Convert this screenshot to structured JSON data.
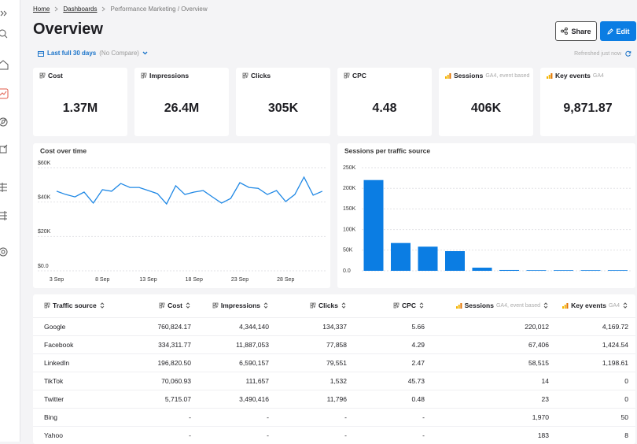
{
  "breadcrumb": [
    "Home",
    "Dashboards",
    "Performance Marketing / Overview"
  ],
  "title": "Overview",
  "actions": [
    "Share",
    "Edit"
  ],
  "date_range": {
    "label": "Last full 30 days",
    "compare": "(No Compare)"
  },
  "refreshed": "Refreshed just now",
  "kpis": [
    {
      "label": "Cost",
      "value": "1.37M"
    },
    {
      "label": "Impressions",
      "value": "26.4M"
    },
    {
      "label": "Clicks",
      "value": "305K"
    },
    {
      "label": "CPC",
      "value": "4.48"
    },
    {
      "label": "Sessions",
      "note": "GA4, event based",
      "value": "406K"
    },
    {
      "label": "Key events",
      "note": "GA4",
      "value": "9,871.87"
    }
  ],
  "line_chart": {
    "type": "line",
    "title": "Cost over time",
    "categories": [
      "3 Sep",
      null,
      null,
      null,
      null,
      "8 Sep",
      null,
      null,
      null,
      null,
      "13 Sep",
      null,
      null,
      null,
      null,
      "18 Sep",
      null,
      null,
      null,
      null,
      "23 Sep",
      null,
      null,
      null,
      null,
      "28 Sep",
      null,
      null,
      null,
      null
    ],
    "values": [
      46300,
      44400,
      43000,
      45800,
      39400,
      47200,
      46300,
      50800,
      48500,
      48500,
      46700,
      44900,
      38900,
      49500,
      44400,
      45800,
      46700,
      43000,
      39400,
      42100,
      51300,
      48500,
      48000,
      44400,
      46700,
      40300,
      44400,
      54500,
      44000,
      46300
    ],
    "color": "#1f88e5",
    "ylim": [
      0,
      60000
    ],
    "yticks": [
      {
        "value": 0,
        "label": "$0.0"
      },
      {
        "value": 20000,
        "label": "$20K"
      },
      {
        "value": 40000,
        "label": "$40K"
      },
      {
        "value": 60000,
        "label": "$60K"
      }
    ],
    "grid": true
  },
  "bar_chart": {
    "type": "bar",
    "title": "Sessions per traffic source",
    "categories": [
      null,
      null,
      null,
      null,
      null,
      null,
      null,
      null,
      null,
      null
    ],
    "values": [
      220012,
      67406,
      58515,
      47700,
      7600,
      1970,
      1000,
      800,
      500,
      300
    ],
    "color": "#0b7de3",
    "ylim": [
      0,
      250000
    ],
    "yticks": [
      {
        "value": 0,
        "label": "0.0"
      },
      {
        "value": 50000,
        "label": "50K"
      },
      {
        "value": 100000,
        "label": "100K"
      },
      {
        "value": 150000,
        "label": "150K"
      },
      {
        "value": 200000,
        "label": "200K"
      },
      {
        "value": 250000,
        "label": "250K"
      }
    ],
    "grid": true
  },
  "table": {
    "columns": [
      {
        "label": "Traffic source"
      },
      {
        "label": "Cost"
      },
      {
        "label": "Impressions"
      },
      {
        "label": "Clicks"
      },
      {
        "label": "CPC"
      },
      {
        "label": "Sessions",
        "note": "GA4, event based"
      },
      {
        "label": "Key events",
        "note": "GA4"
      }
    ],
    "rows": [
      [
        "Google",
        "760,824.17",
        "4,344,140",
        "134,337",
        "5.66",
        "220,012",
        "4,169.72"
      ],
      [
        "Facebook",
        "334,311.77",
        "11,887,053",
        "77,858",
        "4.29",
        "67,406",
        "1,424.54"
      ],
      [
        "LinkedIn",
        "196,820.50",
        "6,590,157",
        "79,551",
        "2.47",
        "58,515",
        "1,198.61"
      ],
      [
        "TikTok",
        "70,060.93",
        "111,657",
        "1,532",
        "45.73",
        "14",
        "0"
      ],
      [
        "Twitter",
        "5,715.07",
        "3,490,416",
        "11,796",
        "0.48",
        "23",
        "0"
      ],
      [
        "Bing",
        "-",
        "-",
        "-",
        "-",
        "1,970",
        "50"
      ],
      [
        "Yahoo",
        "-",
        "-",
        "-",
        "-",
        "183",
        "8"
      ]
    ]
  }
}
